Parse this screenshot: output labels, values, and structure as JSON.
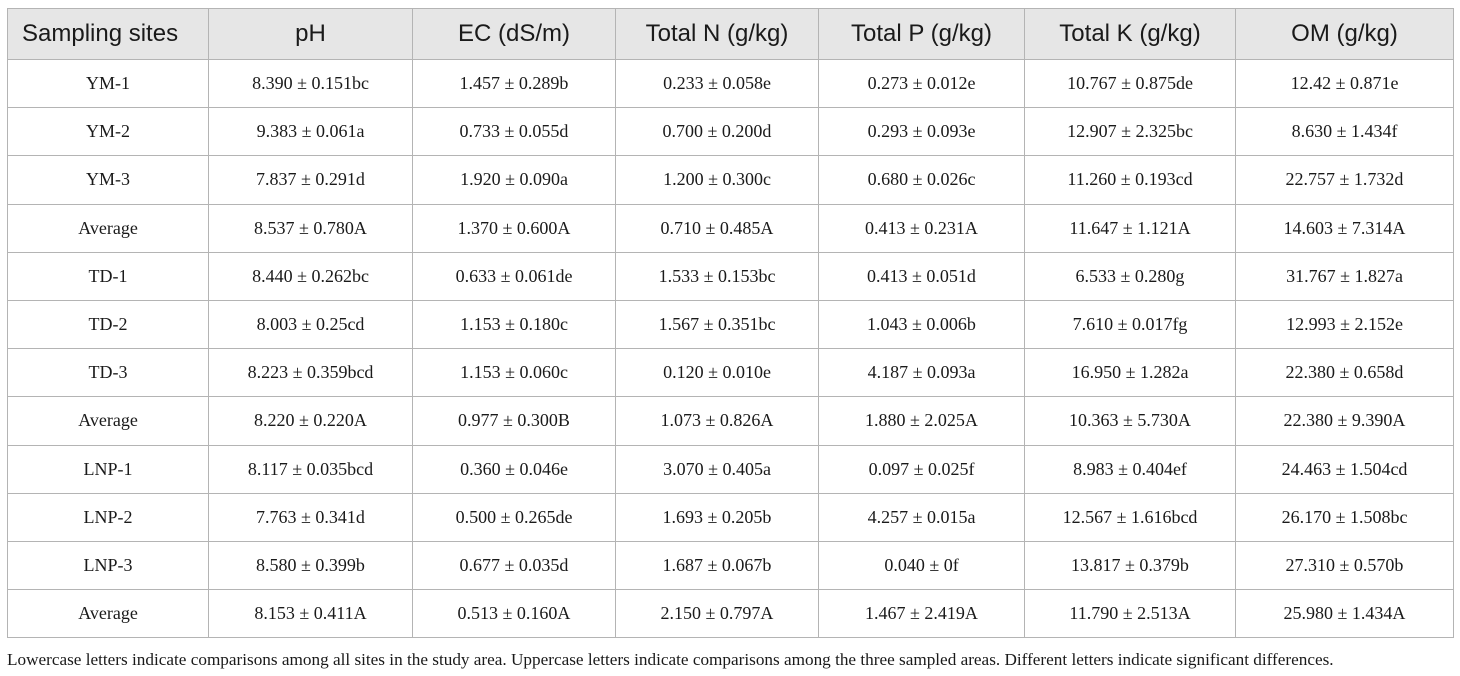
{
  "table": {
    "headers": [
      "Sampling sites",
      "pH",
      "EC (dS/m)",
      "Total N (g/kg)",
      "Total P (g/kg)",
      "Total K (g/kg)",
      "OM (g/kg)"
    ],
    "rows": [
      [
        "YM-1",
        "8.390 ± 0.151bc",
        "1.457 ± 0.289b",
        "0.233 ± 0.058e",
        "0.273 ± 0.012e",
        "10.767 ± 0.875de",
        "12.42 ± 0.871e"
      ],
      [
        "YM-2",
        "9.383 ± 0.061a",
        "0.733 ± 0.055d",
        "0.700 ± 0.200d",
        "0.293 ± 0.093e",
        "12.907 ± 2.325bc",
        "8.630 ± 1.434f"
      ],
      [
        "YM-3",
        "7.837 ± 0.291d",
        "1.920 ± 0.090a",
        "1.200 ± 0.300c",
        "0.680 ± 0.026c",
        "11.260 ± 0.193cd",
        "22.757 ± 1.732d"
      ],
      [
        "Average",
        "8.537 ± 0.780A",
        "1.370 ± 0.600A",
        "0.710 ± 0.485A",
        "0.413 ± 0.231A",
        "11.647 ± 1.121A",
        "14.603 ± 7.314A"
      ],
      [
        "TD-1",
        "8.440 ± 0.262bc",
        "0.633 ± 0.061de",
        "1.533 ± 0.153bc",
        "0.413 ± 0.051d",
        "6.533 ± 0.280g",
        "31.767 ± 1.827a"
      ],
      [
        "TD-2",
        "8.003 ± 0.25cd",
        "1.153 ± 0.180c",
        "1.567 ± 0.351bc",
        "1.043 ± 0.006b",
        "7.610 ± 0.017fg",
        "12.993 ± 2.152e"
      ],
      [
        "TD-3",
        "8.223 ± 0.359bcd",
        "1.153 ± 0.060c",
        "0.120 ± 0.010e",
        "4.187 ± 0.093a",
        "16.950 ± 1.282a",
        "22.380 ± 0.658d"
      ],
      [
        "Average",
        "8.220 ± 0.220A",
        "0.977 ± 0.300B",
        "1.073 ± 0.826A",
        "1.880 ± 2.025A",
        "10.363 ± 5.730A",
        "22.380 ± 9.390A"
      ],
      [
        "LNP-1",
        "8.117 ± 0.035bcd",
        "0.360 ± 0.046e",
        "3.070 ± 0.405a",
        "0.097 ± 0.025f",
        "8.983 ± 0.404ef",
        "24.463 ± 1.504cd"
      ],
      [
        "LNP-2",
        "7.763 ± 0.341d",
        "0.500 ± 0.265de",
        "1.693 ± 0.205b",
        "4.257 ± 0.015a",
        "12.567 ± 1.616bcd",
        "26.170 ± 1.508bc"
      ],
      [
        "LNP-3",
        "8.580 ± 0.399b",
        "0.677 ± 0.035d",
        "1.687 ± 0.067b",
        "0.040 ± 0f",
        "13.817 ± 0.379b",
        "27.310 ± 0.570b"
      ],
      [
        "Average",
        "8.153 ± 0.411A",
        "0.513 ± 0.160A",
        "2.150 ± 0.797A",
        "1.467 ± 2.419A",
        "11.790 ± 2.513A",
        "25.980 ± 1.434A"
      ]
    ]
  },
  "footnote": "Lowercase letters indicate comparisons among all sites in the study area. Uppercase letters indicate comparisons among the three sampled areas. Different letters indicate significant differences."
}
